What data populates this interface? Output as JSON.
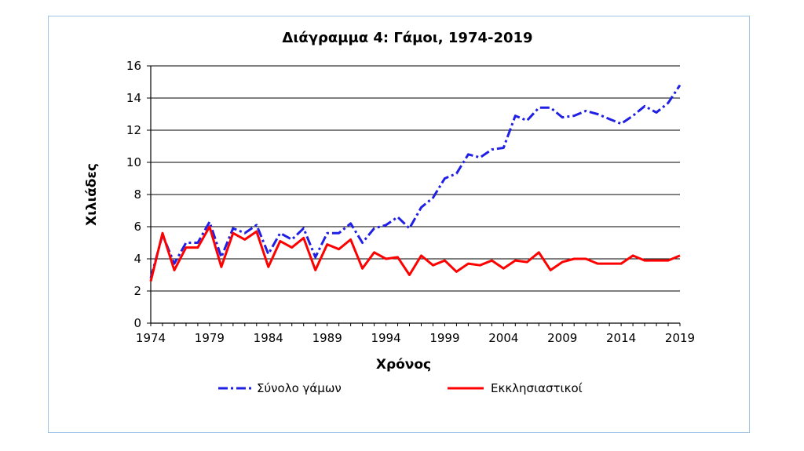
{
  "chart_data": {
    "type": "line",
    "title": "Διάγραμμα 4: Γάμοι, 1974-2019",
    "xlabel": "Χρόνος",
    "ylabel": "Χιλιάδες",
    "xlim": [
      1974,
      2019
    ],
    "ylim": [
      0,
      16
    ],
    "x_ticks": [
      1974,
      1979,
      1984,
      1989,
      1994,
      1999,
      2004,
      2009,
      2014,
      2019
    ],
    "y_ticks": [
      0,
      2,
      4,
      6,
      8,
      10,
      12,
      14,
      16
    ],
    "grid": "horizontal",
    "legend_position": "bottom",
    "x": [
      1974,
      1975,
      1976,
      1977,
      1978,
      1979,
      1980,
      1981,
      1982,
      1983,
      1984,
      1985,
      1986,
      1987,
      1988,
      1989,
      1990,
      1991,
      1992,
      1993,
      1994,
      1995,
      1996,
      1997,
      1998,
      1999,
      2000,
      2001,
      2002,
      2003,
      2004,
      2005,
      2006,
      2007,
      2008,
      2009,
      2010,
      2011,
      2012,
      2013,
      2014,
      2015,
      2016,
      2017,
      2018,
      2019
    ],
    "series": [
      {
        "name": "Σύνολο γάμων",
        "color": "#1f1fe6",
        "style": "dash-dot",
        "values": [
          2.8,
          5.5,
          3.7,
          5.0,
          5.0,
          6.3,
          4.1,
          5.9,
          5.6,
          6.1,
          4.3,
          5.6,
          5.2,
          5.9,
          4.1,
          5.6,
          5.6,
          6.2,
          5.0,
          5.9,
          6.1,
          6.6,
          5.9,
          7.2,
          7.8,
          9.0,
          9.3,
          10.5,
          10.3,
          10.8,
          10.9,
          12.9,
          12.6,
          13.4,
          13.4,
          12.8,
          12.9,
          13.2,
          13.0,
          12.7,
          12.4,
          12.9,
          13.5,
          13.1,
          13.7,
          14.8
        ]
      },
      {
        "name": "Εκκλησιαστικοί",
        "color": "#ff0000",
        "style": "solid",
        "values": [
          2.6,
          5.6,
          3.3,
          4.7,
          4.7,
          6.0,
          3.5,
          5.6,
          5.2,
          5.7,
          3.5,
          5.1,
          4.7,
          5.3,
          3.3,
          4.9,
          4.6,
          5.2,
          3.4,
          4.4,
          4.0,
          4.1,
          3.0,
          4.2,
          3.6,
          3.9,
          3.2,
          3.7,
          3.6,
          3.9,
          3.4,
          3.9,
          3.8,
          4.4,
          3.3,
          3.8,
          4.0,
          4.0,
          3.7,
          3.7,
          3.7,
          4.2,
          3.9,
          3.9,
          3.9,
          4.2
        ]
      }
    ]
  }
}
